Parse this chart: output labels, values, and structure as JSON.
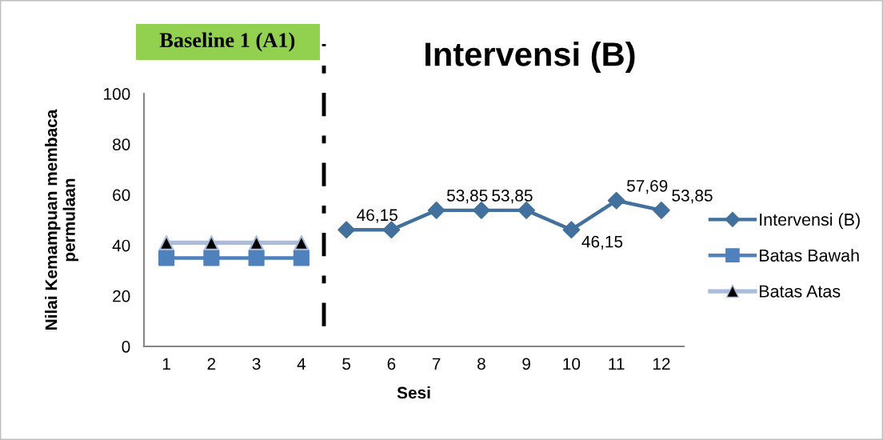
{
  "chart_data": {
    "type": "line",
    "xlabel": "Sesi",
    "ylabel": "Nilai Kemampuan membaca\npermulaan",
    "annotations": [
      "Baseline 1 (A1)",
      "Intervensi (B)"
    ],
    "x": [
      1,
      2,
      3,
      4,
      5,
      6,
      7,
      8,
      9,
      10,
      11,
      12
    ],
    "xlim": [
      0.5,
      12.5
    ],
    "xticks": [
      1,
      2,
      3,
      4,
      5,
      6,
      7,
      8,
      9,
      10,
      11,
      12
    ],
    "ylim": [
      0,
      100
    ],
    "yticks": [
      0,
      20,
      40,
      60,
      80,
      100
    ],
    "legend": "right",
    "series": [
      {
        "name": "Intervensi (B)",
        "color": "#41719c",
        "marker": "diamond",
        "values": [
          null,
          null,
          null,
          null,
          46.15,
          46.15,
          53.85,
          53.85,
          53.85,
          46.15,
          57.69,
          53.85
        ],
        "value_labels": [
          null,
          null,
          null,
          null,
          "46,15",
          null,
          "53,85",
          "53,85",
          null,
          "46,15",
          "57,69",
          "53,85"
        ]
      },
      {
        "name": "Batas Bawah",
        "color": "#4f81bd",
        "marker": "square",
        "values": [
          35,
          35,
          35,
          35,
          null,
          null,
          null,
          null,
          null,
          null,
          null,
          null
        ]
      },
      {
        "name": "Batas Atas",
        "color": "#a9bcdb",
        "marker": "triangle",
        "colors": [
          "#000000",
          "#000000",
          "#000000",
          "#000000",
          null,
          null,
          null,
          null,
          null,
          null,
          null,
          null
        ],
        "values": [
          41,
          41,
          41,
          41,
          null,
          null,
          null,
          null,
          null,
          null,
          null,
          null
        ]
      }
    ],
    "ref_lines": [
      {
        "axis": "x",
        "value": 4.5,
        "color": "#000000",
        "line_style": "dashdot"
      }
    ]
  }
}
